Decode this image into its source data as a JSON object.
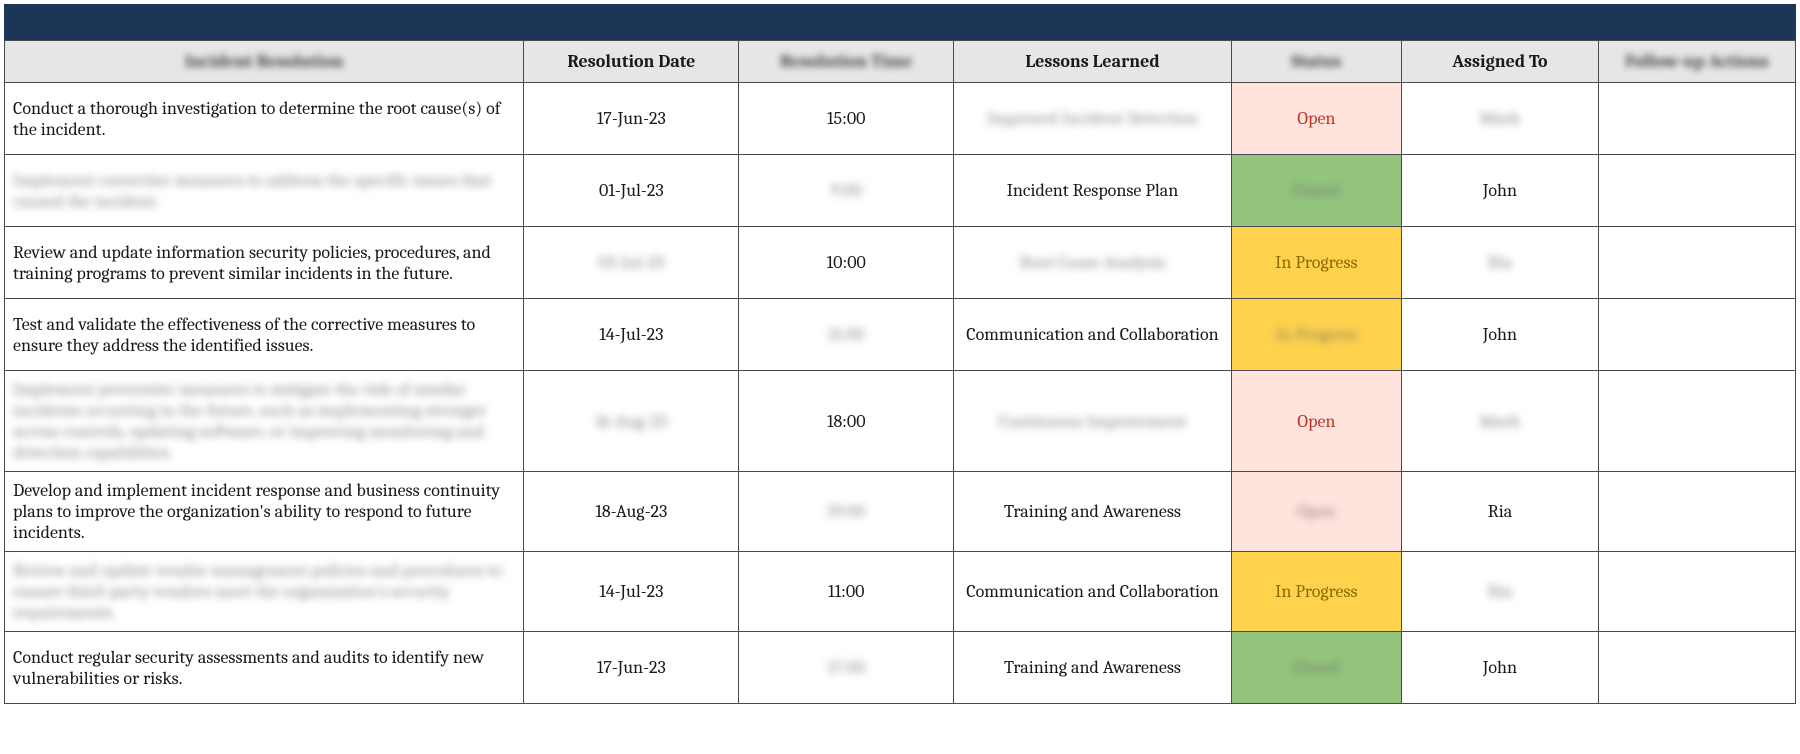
{
  "colors": {
    "header_bg": "#e6e6e6",
    "topbar_bg": "#1d3557",
    "border": "#4a4a4a",
    "text": "#1a1a1a",
    "status_open_bg": "#ffe4de",
    "status_open_fg": "#c0392b",
    "status_inprogress_bg": "#ffd24d",
    "status_inprogress_fg": "#8a6d00",
    "status_closed_bg": "#93c47d",
    "status_closed_fg": "#6b8f5a"
  },
  "columns": [
    {
      "label": "Incident Resolution",
      "blurred": true
    },
    {
      "label": "Resolution Date",
      "blurred": false
    },
    {
      "label": "Resolution Time",
      "blurred": true
    },
    {
      "label": "Lessons Learned",
      "blurred": false
    },
    {
      "label": "Status",
      "blurred": true
    },
    {
      "label": "Assigned To",
      "blurred": false
    },
    {
      "label": "Follow-up Actions",
      "blurred": true
    }
  ],
  "rows": [
    {
      "resolution": "Conduct a thorough investigation to determine the root cause(s) of the incident.",
      "resolution_blur": false,
      "date": "17-Jun-23",
      "date_blur": false,
      "time": "15:00",
      "time_blur": false,
      "lessons": "Improved Incident Detection",
      "lessons_blur": true,
      "status": "Open",
      "status_kind": "open",
      "status_blur": false,
      "assigned": "Mark",
      "assigned_blur": true,
      "follow": "",
      "follow_blur": false
    },
    {
      "resolution": "Implement corrective measures to address the specific issues that caused the incident.",
      "resolution_blur": true,
      "date": "01-Jul-23",
      "date_blur": false,
      "time": "9:00",
      "time_blur": true,
      "lessons": "Incident Response Plan",
      "lessons_blur": false,
      "status": "Closed",
      "status_kind": "closed",
      "status_blur": true,
      "assigned": "John",
      "assigned_blur": false,
      "follow": "",
      "follow_blur": false
    },
    {
      "resolution": "Review and update information security policies, procedures, and training programs to prevent similar incidents in the future.",
      "resolution_blur": false,
      "date": "03-Jul-23",
      "date_blur": true,
      "time": "10:00",
      "time_blur": false,
      "lessons": "Root Cause Analysis",
      "lessons_blur": true,
      "status": "In Progress",
      "status_kind": "inprogress",
      "status_blur": false,
      "assigned": "Ria",
      "assigned_blur": true,
      "follow": "",
      "follow_blur": false
    },
    {
      "resolution": "Test and validate the effectiveness of the corrective measures to ensure they address the identified issues.",
      "resolution_blur": false,
      "date": "14-Jul-23",
      "date_blur": false,
      "time": "11:00",
      "time_blur": true,
      "lessons": "Communication and Collaboration",
      "lessons_blur": false,
      "status": "In Progress",
      "status_kind": "inprogress",
      "status_blur": true,
      "assigned": "John",
      "assigned_blur": false,
      "follow": "",
      "follow_blur": false
    },
    {
      "resolution": "Implement preventive measures to mitigate the risk of similar incidents occurring in the future, such as implementing stronger access controls, updating software, or improving monitoring and detection capabilities.",
      "resolution_blur": true,
      "date": "16-Aug-23",
      "date_blur": true,
      "time": "18:00",
      "time_blur": false,
      "lessons": "Continuous Improvement",
      "lessons_blur": true,
      "status": "Open",
      "status_kind": "open",
      "status_blur": false,
      "assigned": "Mark",
      "assigned_blur": true,
      "follow": "",
      "follow_blur": false
    },
    {
      "resolution": "Develop and implement incident response and business continuity plans to improve the organization's ability to respond to future incidents.",
      "resolution_blur": false,
      "date": "18-Aug-23",
      "date_blur": false,
      "time": "19:00",
      "time_blur": true,
      "lessons": "Training and Awareness",
      "lessons_blur": false,
      "status": "Open",
      "status_kind": "open",
      "status_blur": true,
      "assigned": "Ria",
      "assigned_blur": false,
      "follow": "",
      "follow_blur": false
    },
    {
      "resolution": "Review and update vendor management policies and procedures to ensure third-party vendors meet the organization's security requirements.",
      "resolution_blur": true,
      "date": "14-Jul-23",
      "date_blur": false,
      "time": "11:00",
      "time_blur": false,
      "lessons": "Communication and Collaboration",
      "lessons_blur": false,
      "status": "In Progress",
      "status_kind": "inprogress",
      "status_blur": false,
      "assigned": "Ria",
      "assigned_blur": true,
      "follow": "",
      "follow_blur": false
    },
    {
      "resolution": "Conduct regular security assessments and audits to identify new vulnerabilities or risks.",
      "resolution_blur": false,
      "date": "17-Jun-23",
      "date_blur": false,
      "time": "17:00",
      "time_blur": true,
      "lessons": "Training and Awareness",
      "lessons_blur": false,
      "status": "Closed",
      "status_kind": "closed",
      "status_blur": true,
      "assigned": "John",
      "assigned_blur": false,
      "follow": "",
      "follow_blur": false
    }
  ]
}
